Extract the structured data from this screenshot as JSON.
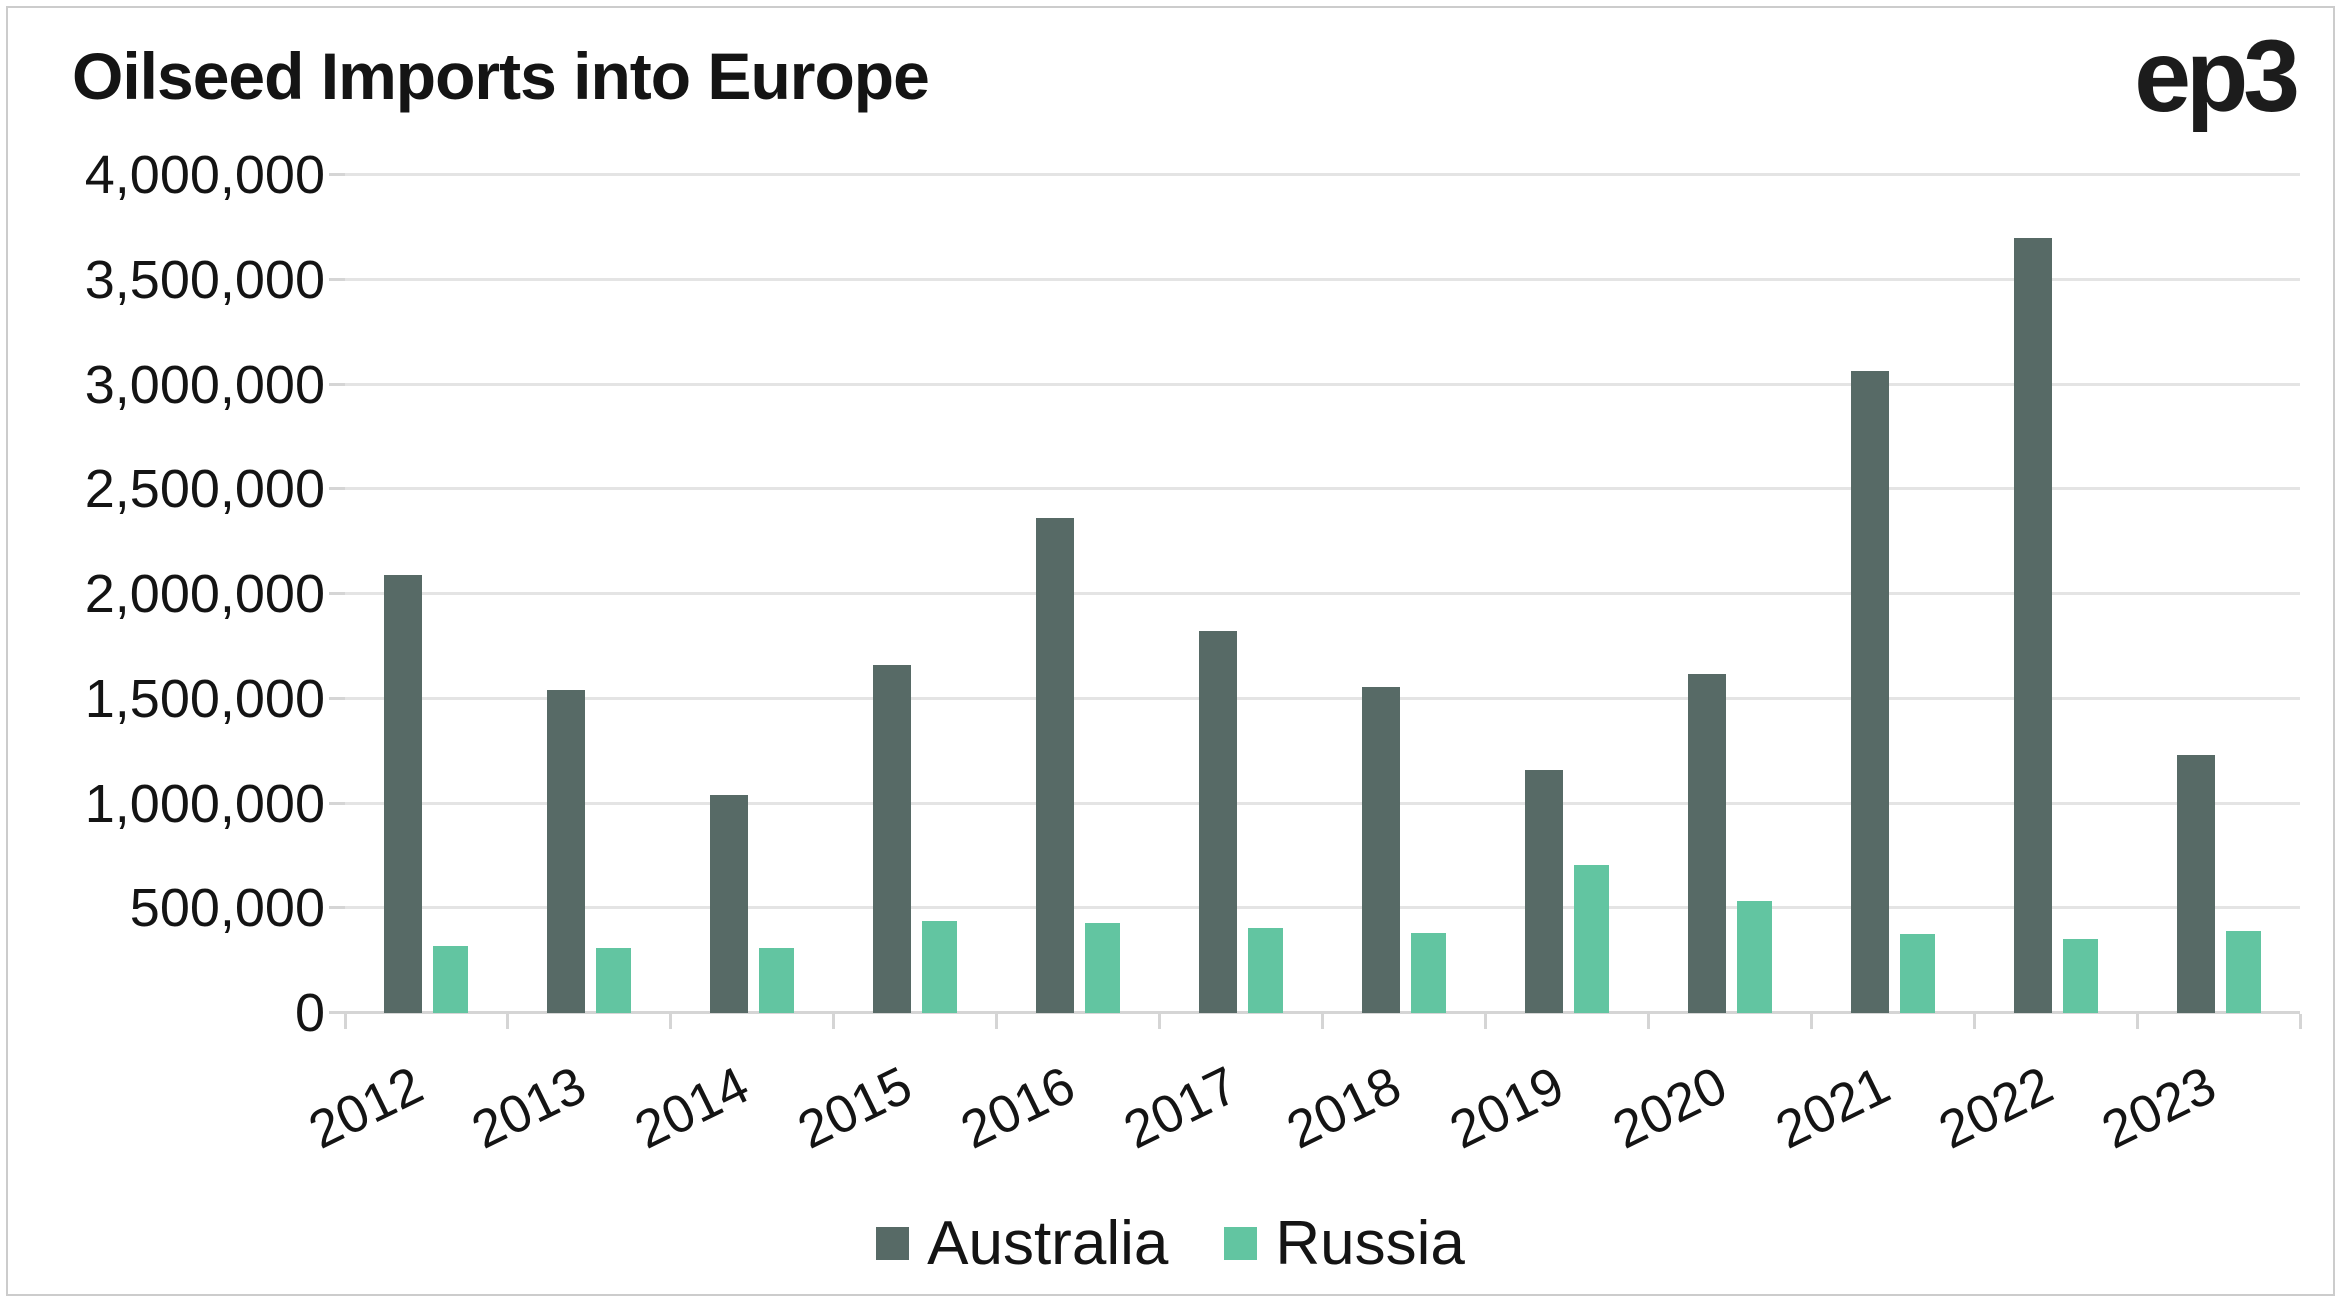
{
  "title": "Oilseed Imports into Europe",
  "logo_text": "ep3",
  "colors": {
    "australia": "#576A66",
    "russia": "#62C5A1",
    "gridline": "#e4e4e4",
    "axis_line": "#d5d5d5",
    "text": "#141414",
    "frame_border": "#cccccc",
    "background": "#ffffff"
  },
  "chart_data": {
    "type": "bar",
    "title": "Oilseed Imports into Europe",
    "categories": [
      "2012",
      "2013",
      "2014",
      "2015",
      "2016",
      "2017",
      "2018",
      "2019",
      "2020",
      "2021",
      "2022",
      "2023"
    ],
    "series": [
      {
        "name": "Australia",
        "color": "#576A66",
        "values": [
          2090000,
          1540000,
          1040000,
          1660000,
          2365000,
          1825000,
          1555000,
          1160000,
          1620000,
          3065000,
          3700000,
          1230000
        ]
      },
      {
        "name": "Russia",
        "color": "#62C5A1",
        "values": [
          320000,
          310000,
          310000,
          440000,
          430000,
          405000,
          380000,
          705000,
          535000,
          375000,
          355000,
          390000
        ]
      }
    ],
    "ylim": [
      0,
      4000000
    ],
    "ytick_step": 500000,
    "y_tick_labels": [
      "0",
      "500,000",
      "1,000,000",
      "1,500,000",
      "2,000,000",
      "2,500,000",
      "3,000,000",
      "3,500,000",
      "4,000,000"
    ],
    "grid": true,
    "legend_position": "bottom-center",
    "x_label_rotation_deg": -26
  }
}
